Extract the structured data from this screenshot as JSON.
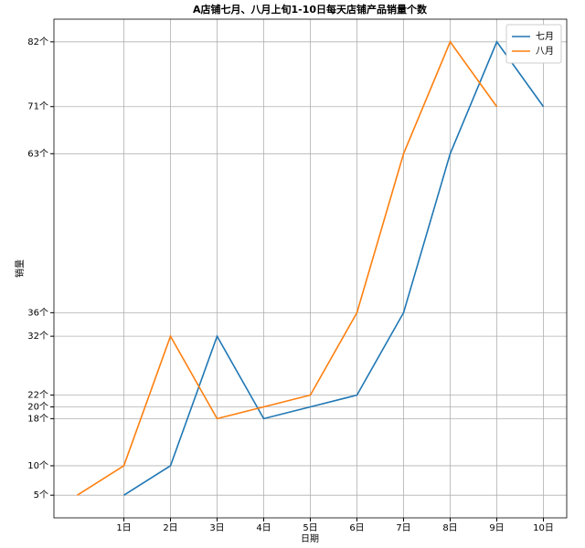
{
  "chart_data": {
    "type": "line",
    "title": "A店铺七月、八月上旬1-10日每天店铺产品销量个数",
    "x_label": "日期",
    "y_label": "销量",
    "x": [
      0,
      1,
      2,
      3,
      4,
      5,
      6,
      7,
      8,
      9,
      10
    ],
    "series": [
      {
        "name": "七月",
        "color": "#1f77b4",
        "values": [
          null,
          5,
          10,
          32,
          18,
          20,
          22,
          36,
          63,
          82,
          71
        ]
      },
      {
        "name": "八月",
        "color": "#ff7f0e",
        "values": [
          5,
          10,
          32,
          18,
          20,
          22,
          36,
          63,
          82,
          71,
          null
        ]
      }
    ],
    "xlim": [
      -0.5,
      10.5
    ],
    "xticks": [
      {
        "value": 1,
        "label": "1日"
      },
      {
        "value": 2,
        "label": "2日"
      },
      {
        "value": 3,
        "label": "3日"
      },
      {
        "value": 4,
        "label": "4日"
      },
      {
        "value": 5,
        "label": "5日"
      },
      {
        "value": 6,
        "label": "6日"
      },
      {
        "value": 7,
        "label": "7日"
      },
      {
        "value": 8,
        "label": "8日"
      },
      {
        "value": 9,
        "label": "9日"
      },
      {
        "value": 10,
        "label": "10日"
      }
    ],
    "ylim": [
      1.15,
      85.85
    ],
    "yticks": [
      {
        "value": 5,
        "label": "5个"
      },
      {
        "value": 10,
        "label": "10个"
      },
      {
        "value": 18,
        "label": "18个"
      },
      {
        "value": 20,
        "label": "20个"
      },
      {
        "value": 22,
        "label": "22个"
      },
      {
        "value": 32,
        "label": "32个"
      },
      {
        "value": 36,
        "label": "36个"
      },
      {
        "value": 63,
        "label": "63个"
      },
      {
        "value": 71,
        "label": "71个"
      },
      {
        "value": 82,
        "label": "82个"
      }
    ],
    "grid": true,
    "legend": "upper right"
  }
}
